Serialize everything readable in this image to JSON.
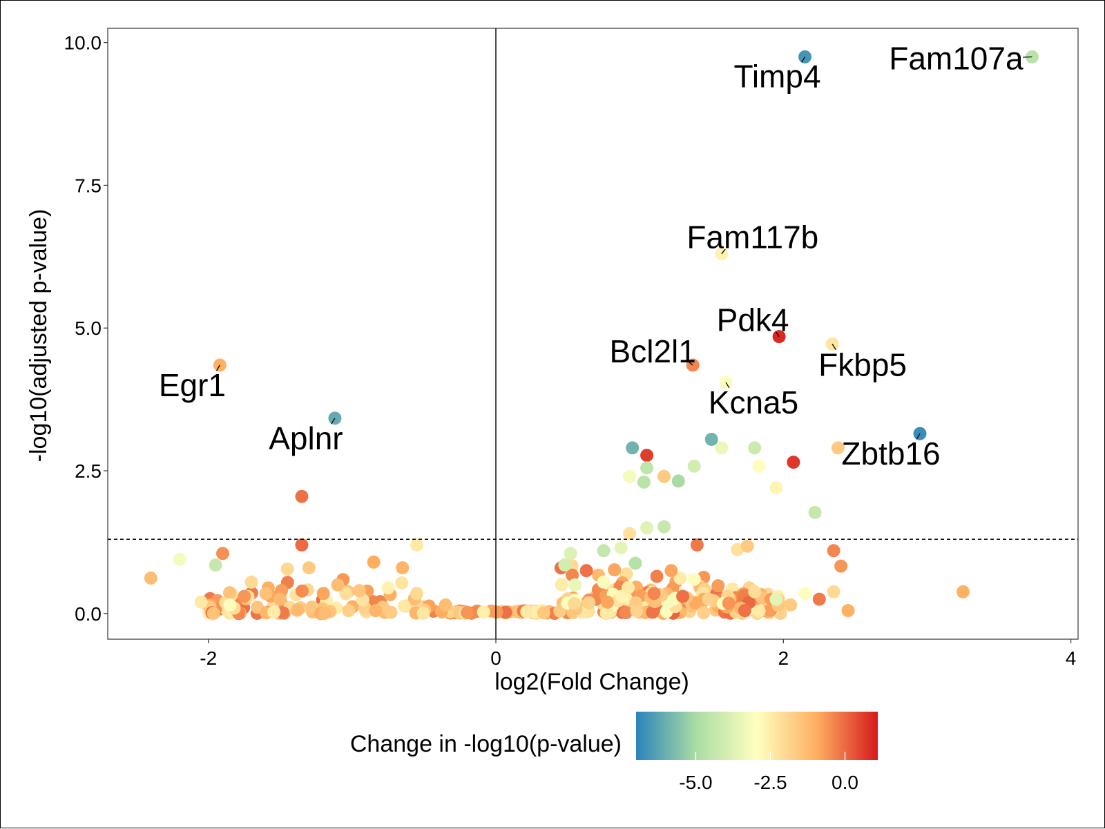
{
  "chart_data": {
    "type": "scatter",
    "xlabel": "log2(Fold Change)",
    "ylabel": "-log10(adjusted p-value)",
    "xlim": [
      -2.7,
      4.05
    ],
    "ylim": [
      -0.45,
      10.25
    ],
    "x_ticks": [
      "-2",
      "0",
      "2",
      "4"
    ],
    "y_ticks": [
      "0.0",
      "2.5",
      "5.0",
      "7.5",
      "10.0"
    ],
    "x_tick_values": [
      -2,
      0,
      2,
      4
    ],
    "y_tick_values": [
      0,
      2.5,
      5,
      7.5,
      10
    ],
    "vline_x": 0,
    "hline_y": 1.3,
    "hline_style": "dashed",
    "grid": false,
    "legend": {
      "title": "Change in -log10(p-value)",
      "position": "bottom",
      "type": "colorbar",
      "range": [
        -7.0,
        1.1
      ],
      "ticks": [
        "-5.0",
        "-2.5",
        "0.0"
      ],
      "tick_values": [
        -5.0,
        -2.5,
        0.0
      ],
      "colors": [
        "#2b83ba",
        "#abdda4",
        "#ffffbf",
        "#fdae61",
        "#d7191c"
      ]
    },
    "labeled_points": [
      {
        "label": "Fam107a",
        "x": 3.73,
        "y": 9.75,
        "c": -4.6
      },
      {
        "label": "Timp4",
        "x": 2.15,
        "y": 9.75,
        "c": -6.6
      },
      {
        "label": "Fam117b",
        "x": 1.57,
        "y": 6.3,
        "c": -2.6
      },
      {
        "label": "Pdk4",
        "x": 1.97,
        "y": 4.85,
        "c": 0.9
      },
      {
        "label": "Fkbp5",
        "x": 2.34,
        "y": 4.72,
        "c": -2.3
      },
      {
        "label": "Bcl2l1",
        "x": 1.37,
        "y": 4.35,
        "c": -0.4
      },
      {
        "label": "Egr1",
        "x": -1.92,
        "y": 4.35,
        "c": -1.0
      },
      {
        "label": "Kcna5",
        "x": 1.6,
        "y": 4.05,
        "c": -3.0
      },
      {
        "label": "Aplnr",
        "x": -1.12,
        "y": 3.42,
        "c": -6.1
      },
      {
        "label": "Zbtb16",
        "x": 2.95,
        "y": 3.15,
        "c": -6.8
      }
    ],
    "points": [
      {
        "x": 0.95,
        "y": 2.9,
        "c": -5.9
      },
      {
        "x": 1.05,
        "y": 2.77,
        "c": 0.6
      },
      {
        "x": 1.05,
        "y": 2.55,
        "c": -4.5
      },
      {
        "x": 0.93,
        "y": 2.4,
        "c": -3.2
      },
      {
        "x": 1.03,
        "y": 2.3,
        "c": -4.6
      },
      {
        "x": 1.17,
        "y": 2.4,
        "c": -1.6
      },
      {
        "x": 1.27,
        "y": 2.32,
        "c": -5.0
      },
      {
        "x": 1.38,
        "y": 2.58,
        "c": -4.0
      },
      {
        "x": 1.5,
        "y": 3.05,
        "c": -5.9
      },
      {
        "x": 1.57,
        "y": 2.9,
        "c": -3.4
      },
      {
        "x": 1.8,
        "y": 2.9,
        "c": -4.2
      },
      {
        "x": 1.83,
        "y": 2.58,
        "c": -2.9
      },
      {
        "x": 2.07,
        "y": 2.65,
        "c": 0.7
      },
      {
        "x": 1.95,
        "y": 2.2,
        "c": -2.7
      },
      {
        "x": 2.38,
        "y": 2.9,
        "c": -1.6
      },
      {
        "x": 2.22,
        "y": 1.77,
        "c": -4.3
      },
      {
        "x": -1.35,
        "y": 2.05,
        "c": -0.1
      },
      {
        "x": 1.05,
        "y": 1.5,
        "c": -3.7
      },
      {
        "x": 1.17,
        "y": 1.52,
        "c": -4.3
      },
      {
        "x": 0.93,
        "y": 1.4,
        "c": -2.2
      },
      {
        "x": -1.35,
        "y": 1.2,
        "c": 0.0
      },
      {
        "x": -1.9,
        "y": 1.05,
        "c": -0.5
      },
      {
        "x": -1.95,
        "y": 0.85,
        "c": -4.3
      },
      {
        "x": -2.2,
        "y": 0.95,
        "c": -3.2
      },
      {
        "x": -2.4,
        "y": 0.62,
        "c": -1.3
      },
      {
        "x": 1.4,
        "y": 1.2,
        "c": -0.2
      },
      {
        "x": 1.68,
        "y": 1.12,
        "c": -2.2
      },
      {
        "x": 1.75,
        "y": 1.18,
        "c": -1.6
      },
      {
        "x": 2.35,
        "y": 1.1,
        "c": -0.4
      },
      {
        "x": 2.4,
        "y": 0.83,
        "c": -0.6
      },
      {
        "x": 3.25,
        "y": 0.38,
        "c": -1.0
      },
      {
        "x": -0.55,
        "y": 1.2,
        "c": -2.4
      },
      {
        "x": 0.63,
        "y": 0.75,
        "c": -0.1
      },
      {
        "x": 0.48,
        "y": 0.85,
        "c": -4.0
      },
      {
        "x": 0.52,
        "y": 1.05,
        "c": -3.8
      },
      {
        "x": 0.75,
        "y": 1.1,
        "c": -4.4
      },
      {
        "x": 0.87,
        "y": 1.15,
        "c": -3.6
      },
      {
        "x": 0.97,
        "y": 0.88,
        "c": -4.7
      },
      {
        "x": 1.12,
        "y": 0.65,
        "c": -0.3
      },
      {
        "x": 1.22,
        "y": 0.75,
        "c": -0.8
      },
      {
        "x": 1.38,
        "y": 0.6,
        "c": -2.9
      },
      {
        "x": -1.1,
        "y": 0.5,
        "c": -1.3
      },
      {
        "x": -0.85,
        "y": 0.9,
        "c": -0.9
      },
      {
        "x": -0.65,
        "y": 0.8,
        "c": -1.1
      },
      {
        "x": -1.3,
        "y": 0.8,
        "c": -1.6
      },
      {
        "x": -1.45,
        "y": 0.78,
        "c": -2.0
      },
      {
        "x": -1.85,
        "y": 0.15,
        "c": -3.0
      },
      {
        "x": -2.05,
        "y": 0.2,
        "c": -2.4
      },
      {
        "x": -1.7,
        "y": 0.55,
        "c": -2.0
      },
      {
        "x": -1.6,
        "y": 0.35,
        "c": -1.4
      },
      {
        "x": 2.15,
        "y": 0.35,
        "c": -3.0
      },
      {
        "x": 2.25,
        "y": 0.25,
        "c": -0.2
      },
      {
        "x": 2.35,
        "y": 0.38,
        "c": -2.0
      },
      {
        "x": 2.45,
        "y": 0.05,
        "c": -1.0
      },
      {
        "x": 2.05,
        "y": 0.15,
        "c": -1.6
      },
      {
        "x": 1.95,
        "y": 0.25,
        "c": -3.6
      },
      {
        "x": 1.8,
        "y": 0.38,
        "c": -2.1
      },
      {
        "x": -1.2,
        "y": 0.35,
        "c": -0.8
      },
      {
        "x": -0.95,
        "y": 0.4,
        "c": -1.5
      },
      {
        "x": -0.75,
        "y": 0.45,
        "c": -2.6
      },
      {
        "x": -0.55,
        "y": 0.35,
        "c": -2.0
      },
      {
        "x": -0.35,
        "y": 0.15,
        "c": -1.3
      },
      {
        "x": -1.5,
        "y": 0.25,
        "c": -1.2
      },
      {
        "x": -1.75,
        "y": 0.3,
        "c": -0.6
      },
      {
        "x": 0.55,
        "y": 0.5,
        "c": -3.5
      },
      {
        "x": 0.75,
        "y": 0.55,
        "c": -3.1
      },
      {
        "x": 0.92,
        "y": 0.45,
        "c": -2.4
      },
      {
        "x": 1.1,
        "y": 0.35,
        "c": -0.4
      },
      {
        "x": 1.3,
        "y": 0.3,
        "c": -0.1
      },
      {
        "x": 1.48,
        "y": 0.25,
        "c": -1.8
      },
      {
        "x": 1.62,
        "y": 0.18,
        "c": -0.6
      }
    ]
  }
}
